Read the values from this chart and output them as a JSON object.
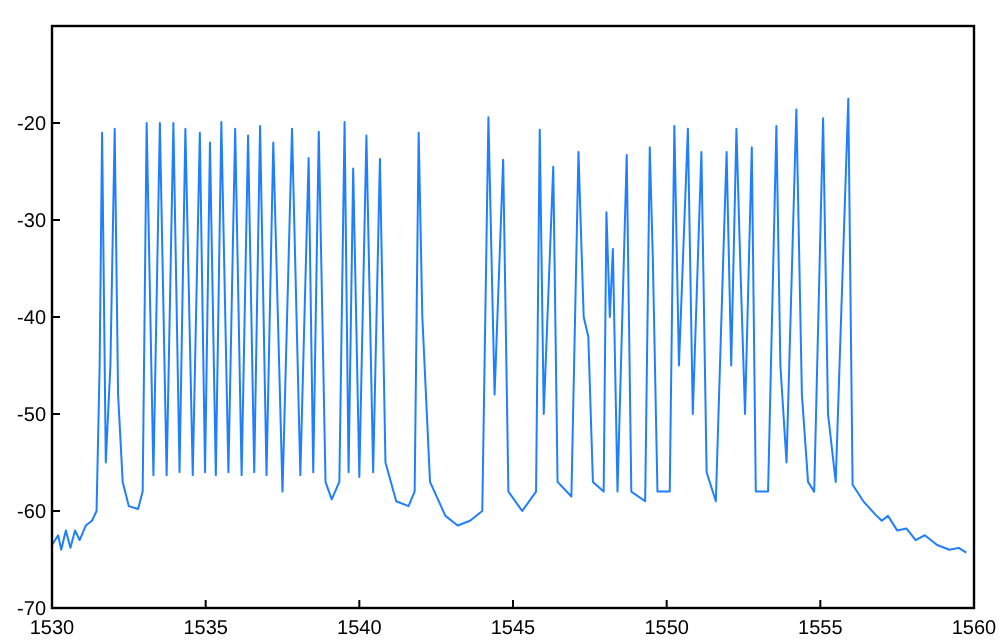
{
  "chart_data": {
    "type": "line",
    "xlim": [
      1530,
      1560
    ],
    "ylim": [
      -70,
      -10
    ],
    "xticks": [
      1530,
      1535,
      1540,
      1545,
      1550,
      1555,
      1560
    ],
    "yticks": [
      -70,
      -60,
      -50,
      -40,
      -30,
      -20
    ],
    "grid": false,
    "marker": "none",
    "line_style": "solid",
    "series": [
      {
        "color": "#1f7fff",
        "x": [
          1530.0,
          1530.2,
          1530.3,
          1530.45,
          1530.6,
          1530.75,
          1530.9,
          1531.1,
          1531.3,
          1531.45,
          1531.55,
          1531.63,
          1531.75,
          1531.9,
          1532.04,
          1532.15,
          1532.3,
          1532.5,
          1532.8,
          1532.95,
          1533.08,
          1533.3,
          1533.51,
          1533.73,
          1533.95,
          1534.15,
          1534.34,
          1534.58,
          1534.81,
          1534.98,
          1535.14,
          1535.33,
          1535.51,
          1535.74,
          1535.96,
          1536.17,
          1536.38,
          1536.58,
          1536.77,
          1536.98,
          1537.2,
          1537.5,
          1537.81,
          1538.08,
          1538.35,
          1538.5,
          1538.68,
          1538.9,
          1539.1,
          1539.35,
          1539.52,
          1539.65,
          1539.8,
          1540.0,
          1540.23,
          1540.45,
          1540.67,
          1540.85,
          1541.2,
          1541.6,
          1541.8,
          1541.93,
          1542.05,
          1542.3,
          1542.8,
          1543.2,
          1543.6,
          1544.0,
          1544.2,
          1544.4,
          1544.68,
          1544.85,
          1545.3,
          1545.75,
          1545.87,
          1546.0,
          1546.31,
          1546.45,
          1546.9,
          1547.13,
          1547.3,
          1547.45,
          1547.6,
          1547.95,
          1548.04,
          1548.15,
          1548.25,
          1548.4,
          1548.7,
          1548.85,
          1549.3,
          1549.45,
          1549.55,
          1549.7,
          1550.1,
          1550.25,
          1550.4,
          1550.69,
          1550.85,
          1551.13,
          1551.3,
          1551.6,
          1551.85,
          1551.95,
          1552.1,
          1552.27,
          1552.4,
          1552.55,
          1552.77,
          1552.9,
          1553.3,
          1553.57,
          1553.7,
          1553.9,
          1554.22,
          1554.4,
          1554.6,
          1554.8,
          1555.09,
          1555.25,
          1555.5,
          1555.91,
          1556.05,
          1556.4,
          1556.8,
          1557.0,
          1557.2,
          1557.5,
          1557.8,
          1558.1,
          1558.4,
          1558.8,
          1559.2,
          1559.5,
          1559.75
        ],
        "values": [
          -63.5,
          -62.5,
          -64,
          -62,
          -63.8,
          -62,
          -63,
          -61.5,
          -61,
          -60,
          -45,
          -21,
          -55,
          -45,
          -20.6,
          -48,
          -57,
          -59.5,
          -59.8,
          -58,
          -20,
          -56.3,
          -20,
          -56.3,
          -20,
          -56,
          -20.6,
          -56.3,
          -21,
          -56,
          -22,
          -56.3,
          -19.9,
          -56,
          -20.6,
          -56.3,
          -21.3,
          -56,
          -20.3,
          -56.3,
          -22,
          -58,
          -20.6,
          -56.3,
          -23.6,
          -56,
          -20.9,
          -57,
          -58.8,
          -57,
          -19.9,
          -56,
          -24.7,
          -56.5,
          -21.3,
          -56,
          -23.7,
          -55,
          -59,
          -59.5,
          -58,
          -21,
          -40,
          -57,
          -60.5,
          -61.5,
          -61,
          -60,
          -19.4,
          -48,
          -23.8,
          -58,
          -60,
          -58,
          -20.7,
          -50,
          -24.5,
          -57,
          -58.5,
          -23,
          -40,
          -42,
          -57,
          -58,
          -29.2,
          -40,
          -33,
          -58,
          -23.3,
          -58,
          -59,
          -22.5,
          -34,
          -58,
          -58,
          -20.3,
          -45,
          -20.6,
          -50,
          -23,
          -56,
          -59,
          -33,
          -23,
          -45,
          -20.6,
          -35,
          -50,
          -22.5,
          -58,
          -58,
          -20.3,
          -45,
          -55,
          -18.6,
          -48,
          -57,
          -58,
          -19.5,
          -50,
          -57,
          -17.5,
          -57.3,
          -59,
          -60.4,
          -61,
          -60.5,
          -62,
          -61.8,
          -63,
          -62.5,
          -63.5,
          -64,
          -63.8,
          -64.3
        ]
      }
    ]
  }
}
